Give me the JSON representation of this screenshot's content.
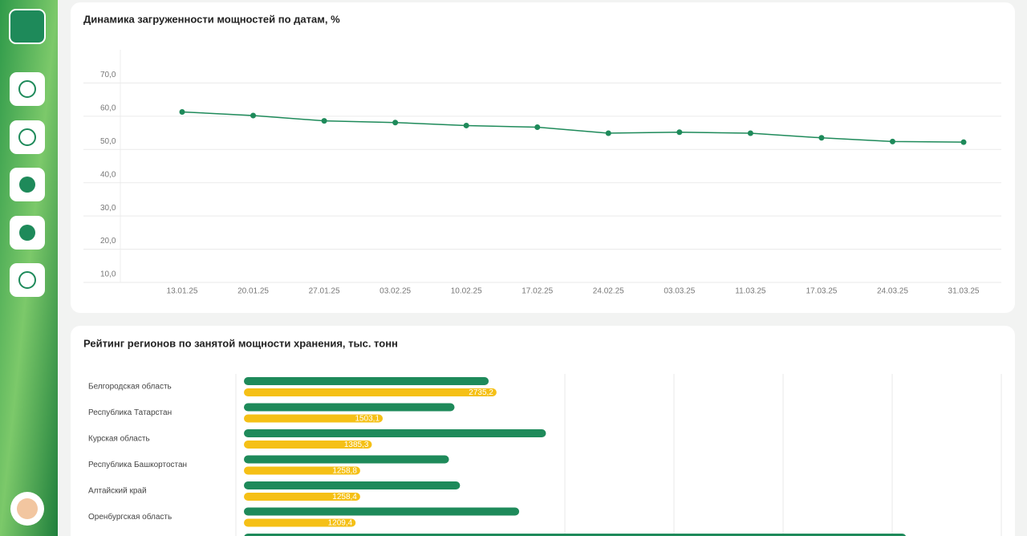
{
  "chart_data": [
    {
      "type": "line",
      "title": "Динамика загруженности мощностей по датам, %",
      "categories": [
        "13.01.25",
        "20.01.25",
        "27.01.25",
        "03.02.25",
        "10.02.25",
        "17.02.25",
        "24.02.25",
        "03.03.25",
        "11.03.25",
        "17.03.25",
        "24.03.25",
        "31.03.25"
      ],
      "series": [
        {
          "color": "#1e8a5a",
          "values": [
            61.3,
            60.2,
            58.6,
            58.1,
            57.2,
            56.7,
            54.9,
            55.2,
            54.9,
            53.5,
            52.4,
            52.2
          ]
        }
      ],
      "ylim": [
        10,
        80
      ],
      "yticks": [
        {
          "value": 10,
          "label": "10,0"
        },
        {
          "value": 20,
          "label": "20,0"
        },
        {
          "value": 30,
          "label": "30,0"
        },
        {
          "value": 40,
          "label": "40,0"
        },
        {
          "value": 50,
          "label": "50,0"
        },
        {
          "value": 60,
          "label": "60,0"
        },
        {
          "value": 70,
          "label": "70,0"
        }
      ],
      "grid": true
    },
    {
      "type": "hbar",
      "title": "Рейтинг регионов по занятой мощности хранения, тыс. тонн",
      "categories": [
        "Белгородская область",
        "Республика Татарстан",
        "Курская область",
        "Республика Башкортостан",
        "Алтайский край",
        "Оренбургская область",
        null
      ],
      "series": [
        {
          "color": "#1e8a5a",
          "values": [
            2650,
            2280,
            3270,
            2220,
            2340,
            2980,
            7170
          ]
        },
        {
          "color": "#f5c016",
          "values": [
            2735.2,
            1503.1,
            1385.3,
            1258.8,
            1258.4,
            1209.4,
            null
          ],
          "value_labels": [
            "2735,2",
            "1503,1",
            "1385,3",
            "1258,8",
            "1258,4",
            "1209,4",
            null
          ]
        }
      ],
      "xlim": [
        0,
        8200
      ]
    }
  ]
}
